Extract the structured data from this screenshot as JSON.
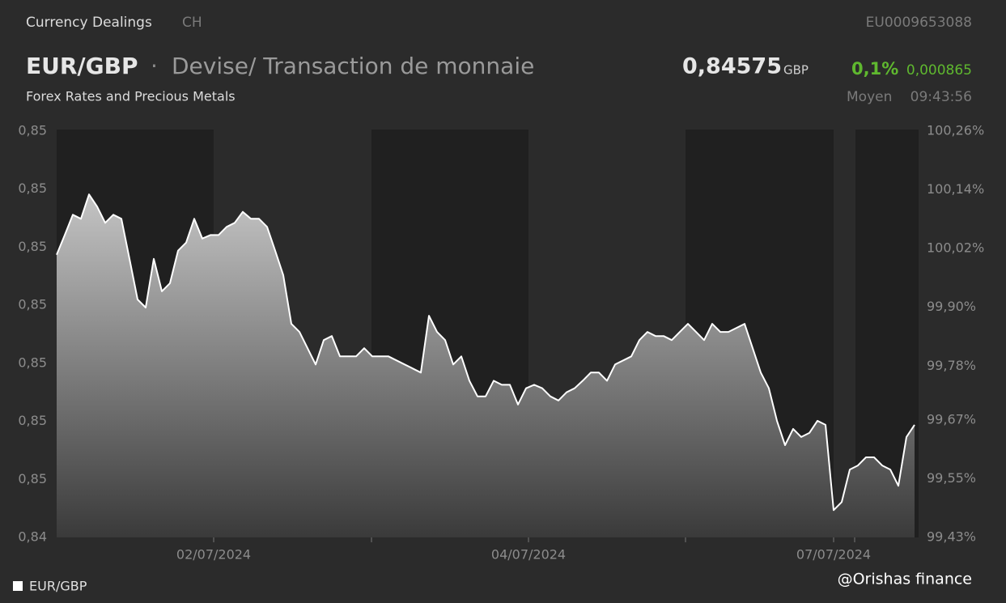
{
  "header": {
    "source": "Currency Dealings",
    "country": "CH",
    "isin": "EU0009653088",
    "pair": "EUR/GBP",
    "separator": "·",
    "description": "Devise/ Transaction de monnaie",
    "price": "0,84575",
    "currency": "GBP",
    "change_pct": "0,1%",
    "change": "0,000865",
    "subtitle": "Forex Rates and Precious Metals",
    "price_type": "Moyen",
    "time": "09:43:56"
  },
  "watermark": "@Orishas finance",
  "chart_data": {
    "type": "line",
    "xlim": [
      0,
      106.5
    ],
    "xticks": [
      {
        "value": 19.4,
        "label": "02/07/2024"
      },
      {
        "value": 58.3,
        "label": "04/07/2024"
      },
      {
        "value": 96,
        "label": "07/07/2024"
      }
    ],
    "ylim": [
      0.844,
      0.851
    ],
    "yticks": [
      {
        "value": 0.844,
        "label": "0,84"
      },
      {
        "value": 0.845,
        "label": "0,85"
      },
      {
        "value": 0.846,
        "label": "0,85"
      },
      {
        "value": 0.847,
        "label": "0,85"
      },
      {
        "value": 0.848,
        "label": "0,85"
      },
      {
        "value": 0.849,
        "label": "0,85"
      },
      {
        "value": 0.85,
        "label": "0,85"
      },
      {
        "value": 0.851,
        "label": "0,85"
      }
    ],
    "y2lim": [
      99.43,
      100.26
    ],
    "y2ticks": [
      {
        "value": 99.43,
        "label": "99,43%"
      },
      {
        "value": 99.55,
        "label": "99,55%"
      },
      {
        "value": 99.67,
        "label": "99,67%"
      },
      {
        "value": 99.78,
        "label": "99,78%"
      },
      {
        "value": 99.9,
        "label": "99,90%"
      },
      {
        "value": 100.02,
        "label": "100,02%"
      },
      {
        "value": 100.14,
        "label": "100,14%"
      },
      {
        "value": 100.26,
        "label": "100,26%"
      }
    ],
    "series": [
      {
        "name": "EUR/GBP",
        "color": "#ffffff",
        "values": [
          0.84887,
          0.84921,
          0.84956,
          0.84949,
          0.84991,
          0.8497,
          0.84942,
          0.84956,
          0.84949,
          0.8488,
          0.8481,
          0.84796,
          0.8488,
          0.84824,
          0.84838,
          0.84894,
          0.84908,
          0.84949,
          0.84915,
          0.84921,
          0.84921,
          0.84935,
          0.84942,
          0.84961,
          0.84949,
          0.84949,
          0.84935,
          0.84894,
          0.84852,
          0.84768,
          0.84754,
          0.84726,
          0.84698,
          0.8474,
          0.84747,
          0.84712,
          0.84712,
          0.84712,
          0.84726,
          0.84712,
          0.84712,
          0.84712,
          0.84705,
          0.84698,
          0.84691,
          0.84684,
          0.84782,
          0.84754,
          0.8474,
          0.84698,
          0.84712,
          0.8467,
          0.84643,
          0.84643,
          0.8467,
          0.84663,
          0.84663,
          0.84629,
          0.84657,
          0.84663,
          0.84657,
          0.84643,
          0.84636,
          0.8465,
          0.84657,
          0.8467,
          0.84684,
          0.84684,
          0.8467,
          0.84698,
          0.84705,
          0.84712,
          0.8474,
          0.84754,
          0.84747,
          0.84747,
          0.8474,
          0.84754,
          0.84768,
          0.84754,
          0.8474,
          0.84768,
          0.84754,
          0.84754,
          0.84761,
          0.84768,
          0.84726,
          0.84684,
          0.84657,
          0.84601,
          0.84559,
          0.84587,
          0.84573,
          0.8458,
          0.84601,
          0.84594,
          0.84447,
          0.84461,
          0.84517,
          0.84524,
          0.84538,
          0.84538,
          0.84524,
          0.84517,
          0.84489,
          0.84573,
          0.84594
        ]
      }
    ],
    "legend": "bottom-left"
  }
}
